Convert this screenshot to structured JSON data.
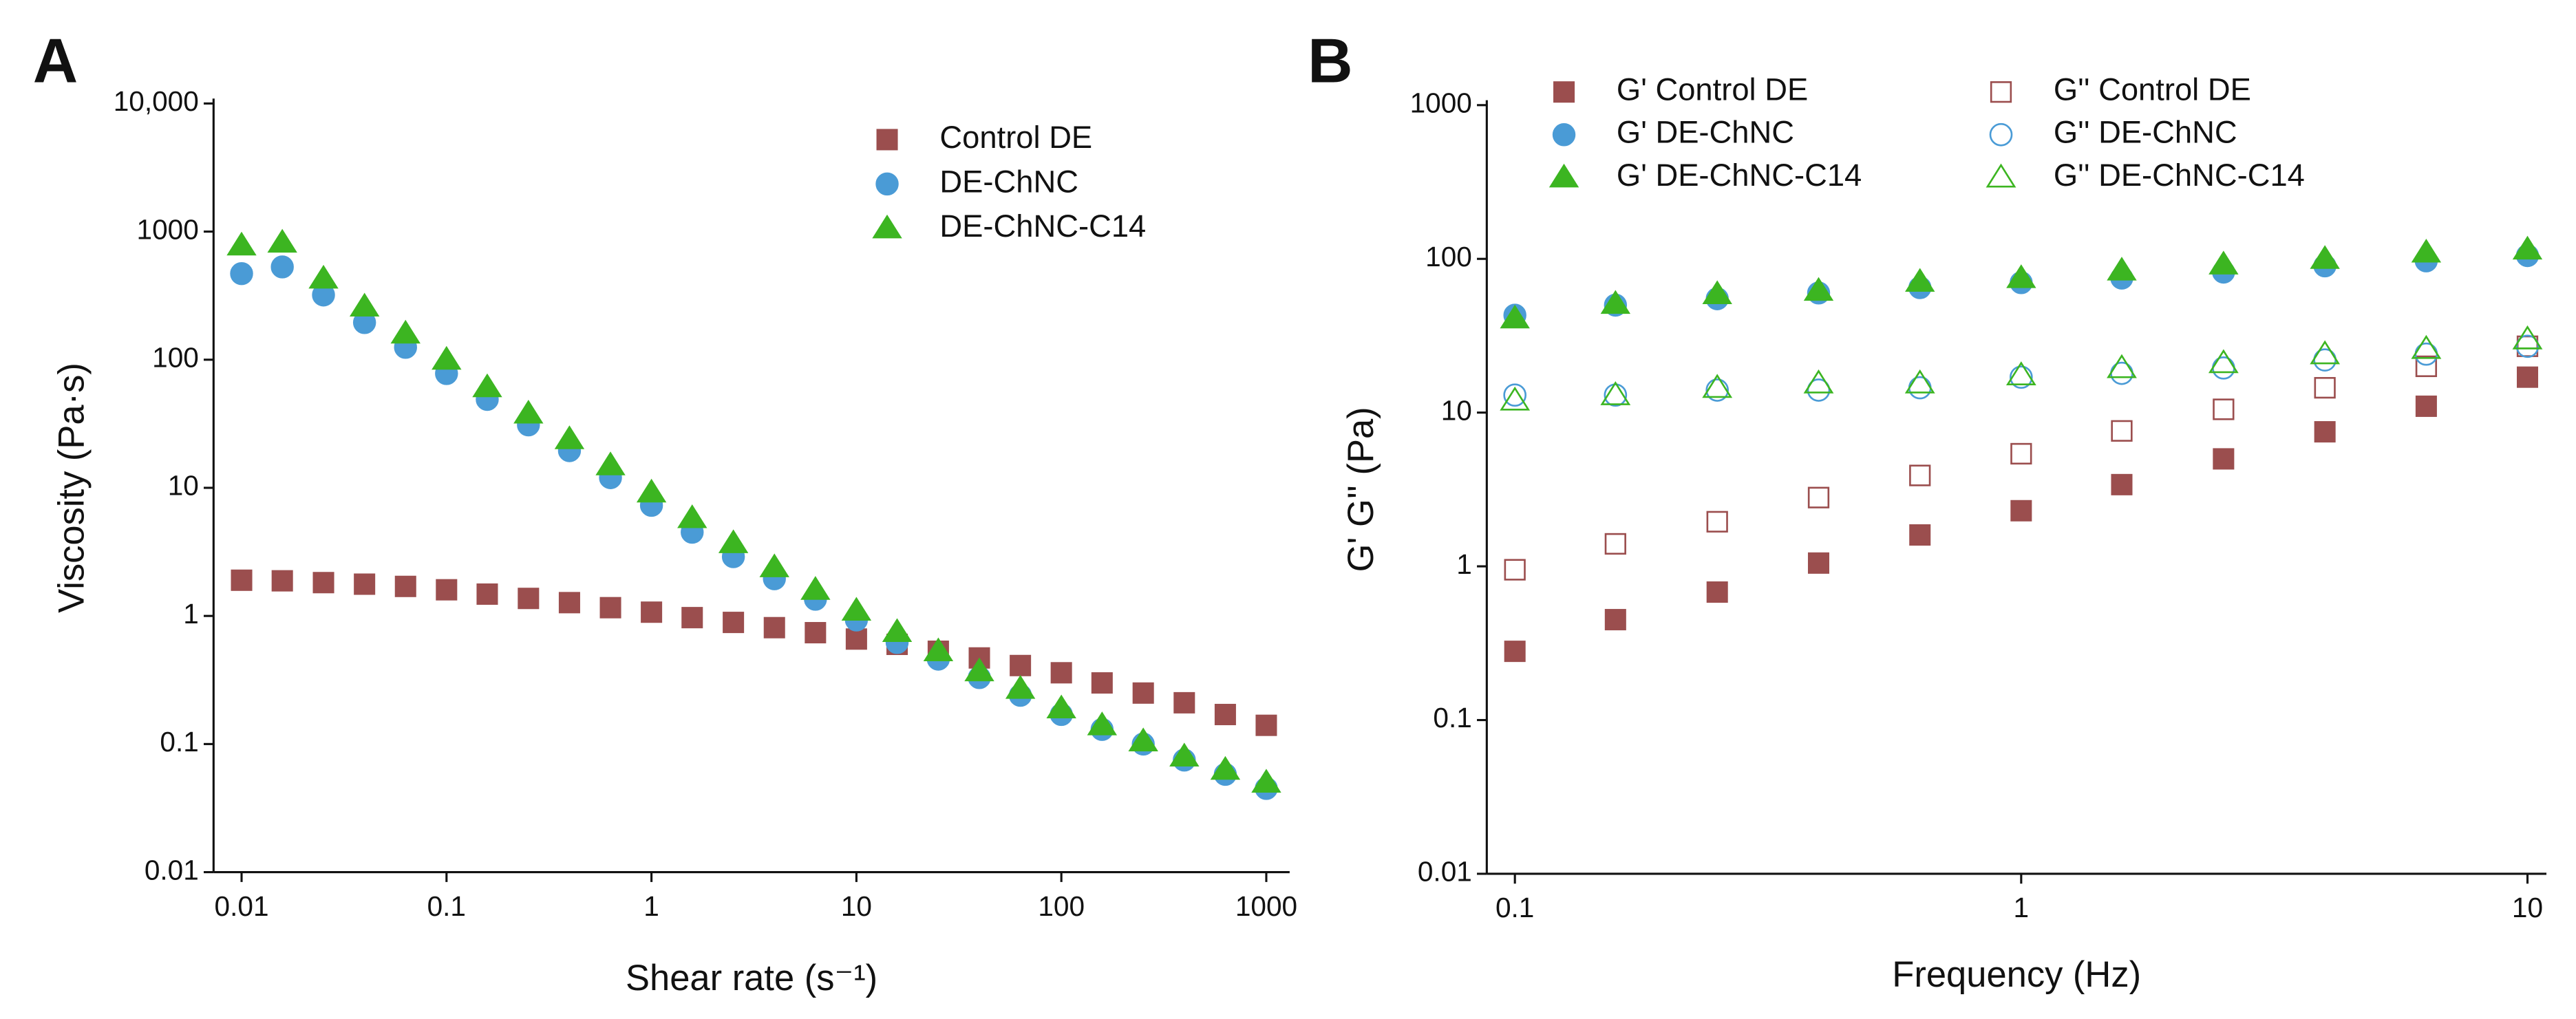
{
  "chart_data": [
    {
      "type": "scatter",
      "panel": "A",
      "x_label": "Shear rate (s⁻¹)",
      "y_label": "Viscosity (Pa·s)",
      "log_x": true,
      "log_y": true,
      "legend": "upper right",
      "legend_columns": 1,
      "xlim": [
        0.0073,
        1300
      ],
      "ylim": [
        0.01,
        10000
      ],
      "xticks": [
        0.01,
        0.1,
        1,
        10,
        100,
        1000
      ],
      "yticks": [
        0.01,
        0.1,
        1,
        10,
        100,
        1000,
        {
          "value": 10000,
          "label": "10,000"
        }
      ],
      "x": [
        0.01,
        0.0158,
        0.0251,
        0.0398,
        0.0631,
        0.1,
        0.158,
        0.251,
        0.398,
        0.631,
        1,
        1.58,
        2.51,
        3.98,
        6.31,
        10,
        15.8,
        25.1,
        39.8,
        63.1,
        100,
        158,
        251,
        398,
        631,
        1000
      ],
      "series": [
        {
          "name": "Control DE",
          "color": "#9b4e4e",
          "marker": "square",
          "filled": true,
          "values": [
            1.9,
            1.88,
            1.82,
            1.77,
            1.7,
            1.6,
            1.48,
            1.37,
            1.27,
            1.16,
            1.07,
            0.97,
            0.89,
            0.81,
            0.74,
            0.66,
            0.6,
            0.53,
            0.47,
            0.41,
            0.36,
            0.3,
            0.25,
            0.21,
            0.17,
            0.14
          ]
        },
        {
          "name": "DE-ChNC",
          "color": "#4a9bd6",
          "marker": "circle",
          "filled": true,
          "values": [
            470,
            530,
            320,
            195,
            125,
            78,
            49,
            31,
            19.5,
            12,
            7.3,
            4.5,
            2.9,
            1.95,
            1.35,
            0.93,
            0.62,
            0.46,
            0.33,
            0.24,
            0.17,
            0.13,
            0.1,
            0.075,
            0.058,
            0.045
          ]
        },
        {
          "name": "DE-ChNC-C14",
          "color": "#3cb521",
          "marker": "triangle",
          "filled": true,
          "values": [
            780,
            820,
            430,
            260,
            160,
            100,
            61,
            38,
            24,
            15,
            9.2,
            5.8,
            3.7,
            2.4,
            1.6,
            1.1,
            0.75,
            0.53,
            0.37,
            0.27,
            0.19,
            0.14,
            0.105,
            0.08,
            0.063,
            0.05
          ]
        }
      ]
    },
    {
      "type": "scatter",
      "panel": "B",
      "x_label": "Frequency (Hz)",
      "y_label": "G' G'' (Pa)",
      "log_x": true,
      "log_y": true,
      "legend": "upper left",
      "legend_columns": 2,
      "xlim": [
        0.088,
        10.9
      ],
      "ylim": [
        0.01,
        1000
      ],
      "xticks": [
        0.1,
        1,
        10
      ],
      "yticks": [
        0.01,
        0.1,
        1,
        10,
        100,
        1000
      ],
      "x": [
        0.1,
        0.158,
        0.251,
        0.398,
        0.631,
        1,
        1.58,
        2.51,
        3.98,
        6.31,
        10
      ],
      "series": [
        {
          "name": "G' Control DE",
          "color": "#9b4e4e",
          "marker": "square",
          "filled": true,
          "values": [
            0.28,
            0.45,
            0.68,
            1.05,
            1.6,
            2.3,
            3.4,
            5,
            7.5,
            11,
            17
          ]
        },
        {
          "name": "G' DE-ChNC",
          "color": "#4a9bd6",
          "marker": "circle",
          "filled": true,
          "values": [
            43,
            50,
            55,
            60,
            65,
            70,
            75,
            82,
            90,
            97,
            105
          ]
        },
        {
          "name": "G' DE-ChNC-C14",
          "color": "#3cb521",
          "marker": "triangle",
          "filled": true,
          "values": [
            41,
            51,
            59,
            62,
            71,
            75,
            84,
            92,
            100,
            110,
            115
          ]
        },
        {
          "name": "G'' Control DE",
          "color": "#9b4e4e",
          "marker": "square",
          "filled": false,
          "values": [
            0.95,
            1.4,
            1.95,
            2.8,
            3.9,
            5.4,
            7.6,
            10.5,
            14.5,
            20,
            27
          ]
        },
        {
          "name": "G'' DE-ChNC",
          "color": "#4a9bd6",
          "marker": "circle",
          "filled": false,
          "values": [
            13,
            13,
            14,
            14,
            14.5,
            17,
            18,
            19.5,
            22,
            24,
            27
          ]
        },
        {
          "name": "G'' DE-ChNC-C14",
          "color": "#3cb521",
          "marker": "triangle",
          "filled": false,
          "values": [
            12,
            13,
            14.5,
            15.5,
            15.5,
            17.5,
            19.5,
            21,
            24,
            26,
            30
          ]
        }
      ]
    }
  ]
}
